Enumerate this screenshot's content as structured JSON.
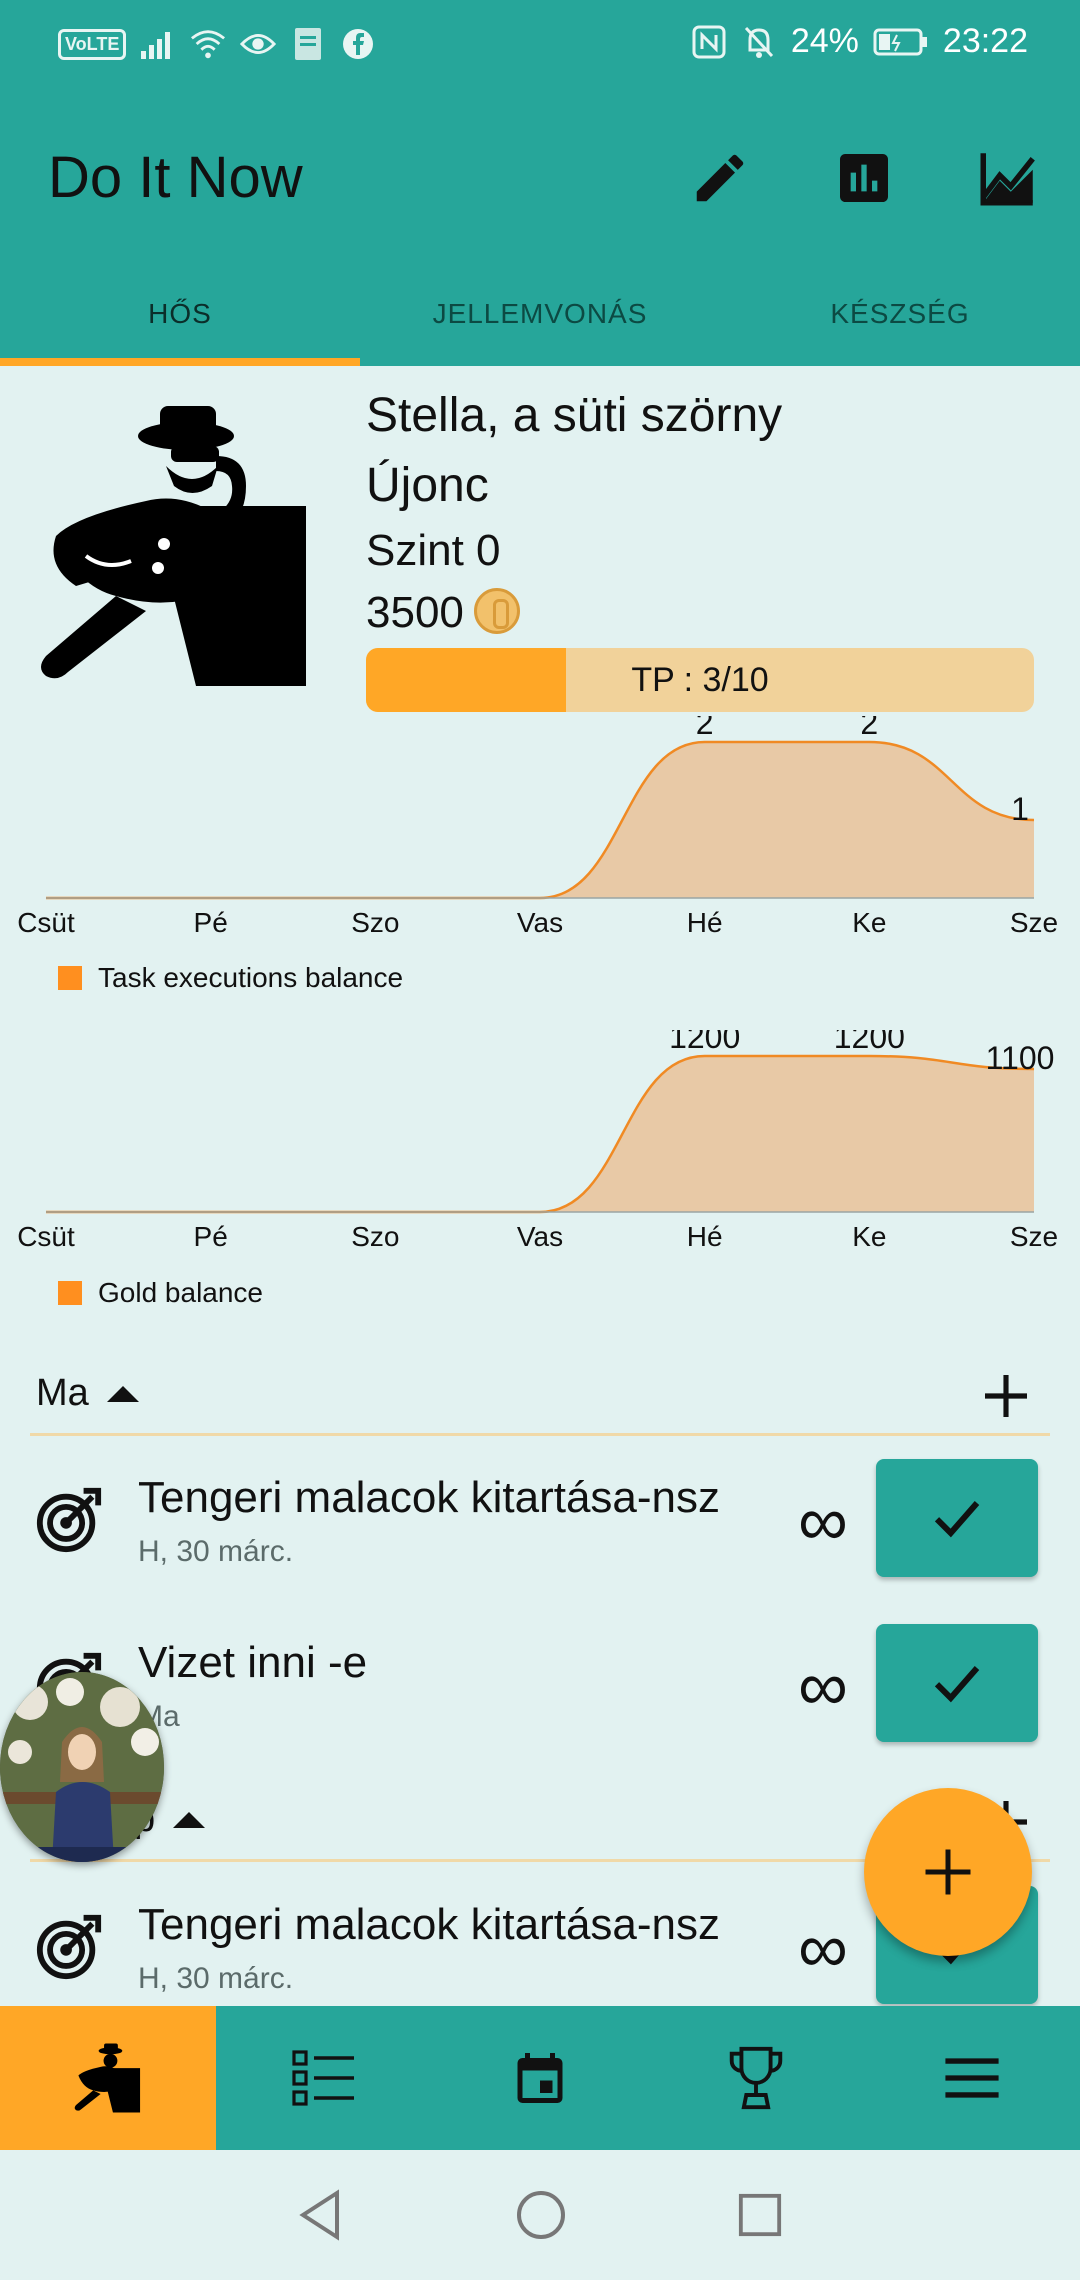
{
  "status_bar": {
    "volte": "VoLTE",
    "battery": "24%",
    "time": "23:22",
    "icons": [
      "signal-icon",
      "wifi-icon",
      "eye-icon",
      "bible-icon",
      "facebook-icon",
      "nfc-icon",
      "bell-off-icon",
      "battery-icon"
    ]
  },
  "app_bar": {
    "title": "Do It Now",
    "actions": [
      "pencil-icon",
      "bar-chart-icon",
      "line-chart-icon"
    ]
  },
  "tabs": [
    {
      "label": "HŐS",
      "active": true
    },
    {
      "label": "JELLEMVONÁS",
      "active": false
    },
    {
      "label": "KÉSZSÉG",
      "active": false
    }
  ],
  "hero": {
    "name": "Stella, a süti szörny",
    "rank": "Újonc",
    "level": "Szint 0",
    "gold": "3500",
    "tp_label": "TP : 3/10",
    "tp_fraction": 0.3
  },
  "charts": {
    "chart_data": [
      {
        "type": "area",
        "categories": [
          "Csüt",
          "Pé",
          "Szo",
          "Vas",
          "Hé",
          "Ke",
          "Sze"
        ],
        "series": [
          {
            "name": "Task executions balance",
            "values": [
              0,
              0,
              0,
              0,
              2,
              2,
              1
            ]
          }
        ],
        "data_labels": [
          "",
          "",
          "",
          "",
          "2",
          "2",
          "1"
        ],
        "legend": "bottom-left",
        "ylim": [
          0,
          2
        ]
      },
      {
        "type": "area",
        "categories": [
          "Csüt",
          "Pé",
          "Szo",
          "Vas",
          "Hé",
          "Ke",
          "Sze"
        ],
        "series": [
          {
            "name": "Gold balance",
            "values": [
              0,
              0,
              0,
              0,
              1200,
              1200,
              1100
            ]
          }
        ],
        "data_labels": [
          "",
          "",
          "",
          "",
          "1200",
          "1200",
          "1100"
        ],
        "legend": "bottom-left",
        "ylim": [
          0,
          1200
        ]
      }
    ]
  },
  "sections": [
    {
      "title": "Ma",
      "tasks": [
        {
          "title": "Tengeri malacok kitartása-nsz",
          "subtitle": "H, 30 márc.",
          "repeat": "∞"
        },
        {
          "title": "Vizet inni -e",
          "subtitle": "Ma",
          "repeat": "∞"
        }
      ]
    },
    {
      "title": "p",
      "tasks": [
        {
          "title": "Tengeri malacok kitartása-nsz",
          "subtitle": "H, 30 márc.",
          "repeat": "∞"
        }
      ]
    }
  ],
  "bottom_nav": [
    {
      "icon": "hero-icon",
      "active": true
    },
    {
      "icon": "task-list-icon",
      "active": false
    },
    {
      "icon": "calendar-icon",
      "active": false
    },
    {
      "icon": "trophy-icon",
      "active": false
    },
    {
      "icon": "menu-icon",
      "active": false
    }
  ],
  "system_nav": [
    "back-icon",
    "home-icon",
    "recents-icon"
  ]
}
